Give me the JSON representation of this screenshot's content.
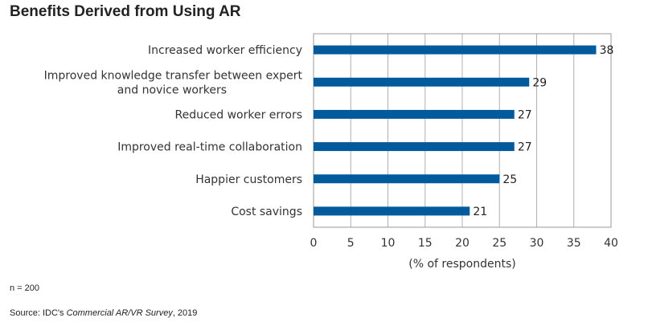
{
  "chart_data": {
    "type": "bar",
    "orientation": "horizontal",
    "title": "Benefits Derived from Using AR",
    "categories": [
      [
        "Increased worker efficiency"
      ],
      [
        "Improved knowledge transfer between expert",
        "and novice workers"
      ],
      [
        "Reduced worker errors"
      ],
      [
        "Improved real-time collaboration"
      ],
      [
        "Happier customers"
      ],
      [
        "Cost savings"
      ]
    ],
    "values": [
      38,
      29,
      27,
      27,
      25,
      21
    ],
    "xlabel": "(% of respondents)",
    "ylabel": "",
    "xlim": [
      0,
      40
    ],
    "xticks": [
      0,
      5,
      10,
      15,
      20,
      25,
      30,
      35,
      40
    ],
    "grid": "vertical",
    "bar_color": "#005a9c",
    "grid_color": "#b0b0b0"
  },
  "notes": {
    "n": "n = 200",
    "source_prefix": "Source: IDC's ",
    "source_title": "Commercial AR/VR Survey",
    "source_suffix": ", 2019"
  }
}
